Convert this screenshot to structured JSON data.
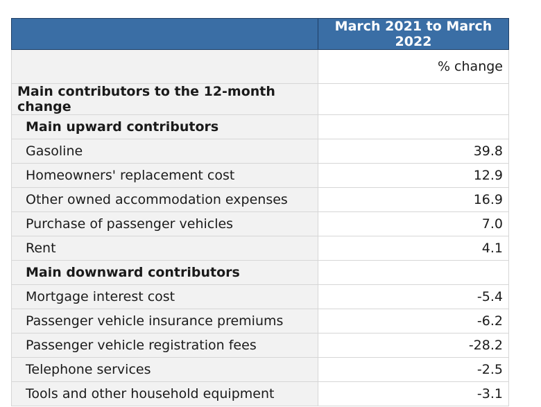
{
  "table": {
    "header": {
      "stub": "",
      "column": "March 2021 to March 2022"
    },
    "unit": "% change",
    "rows": [
      {
        "label": "Main contributors to the 12-month change",
        "value": "",
        "level": 0
      },
      {
        "label": "Main upward contributors",
        "value": "",
        "level": 1
      },
      {
        "label": "Gasoline",
        "value": "39.8",
        "level": 2
      },
      {
        "label": "Homeowners' replacement cost",
        "value": "12.9",
        "level": 2
      },
      {
        "label": "Other owned accommodation expenses",
        "value": "16.9",
        "level": 2
      },
      {
        "label": "Purchase of passenger vehicles",
        "value": "7.0",
        "level": 2
      },
      {
        "label": "Rent",
        "value": "4.1",
        "level": 2
      },
      {
        "label": "Main downward contributors",
        "value": "",
        "level": 1
      },
      {
        "label": "Mortgage interest cost",
        "value": "-5.4",
        "level": 2
      },
      {
        "label": "Passenger vehicle insurance premiums",
        "value": "-6.2",
        "level": 2
      },
      {
        "label": "Passenger vehicle registration fees",
        "value": "-28.2",
        "level": 2
      },
      {
        "label": "Telephone services",
        "value": "-2.5",
        "level": 2
      },
      {
        "label": "Tools and other household equipment",
        "value": "-3.1",
        "level": 2
      }
    ]
  }
}
